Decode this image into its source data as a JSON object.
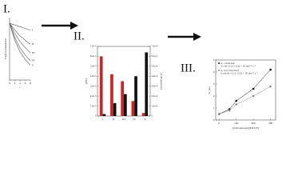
{
  "labels": [
    "I.",
    "II.",
    "III."
  ],
  "chart_data": [
    {
      "type": "line",
      "ylabel": "Light transmission",
      "xlabel": "t",
      "x": [
        0,
        2,
        4,
        6,
        8
      ],
      "xlim": [
        0,
        8
      ],
      "xticks": [
        0,
        2,
        4,
        6,
        8
      ],
      "ylim": [
        0,
        1.1
      ],
      "color": "#555555",
      "series": [
        {
          "name": "I",
          "values": [
            1,
            0.97,
            0.94,
            0.91,
            0.88
          ]
        },
        {
          "name": "II",
          "values": [
            1,
            0.88,
            0.78,
            0.7,
            0.63
          ]
        },
        {
          "name": "III",
          "values": [
            1,
            0.82,
            0.68,
            0.57,
            0.48
          ]
        },
        {
          "name": "IV",
          "values": [
            1,
            0.75,
            0.57,
            0.44,
            0.34
          ]
        },
        {
          "name": "V",
          "values": [
            1,
            0.7,
            0.5,
            0.36,
            0.26
          ]
        }
      ]
    },
    {
      "type": "bar",
      "ylabel": "[EE]",
      "y2label": "[2-Propanone]",
      "categories": [
        "I",
        "II",
        "III",
        "IV",
        "V"
      ],
      "ylim": [
        0,
        7e-05
      ],
      "yticks": [
        {
          "value": 0,
          "label": "0"
        },
        {
          "value": 1e-05,
          "label": "1.0e-5"
        },
        {
          "value": 2e-05,
          "label": "2.0e-5"
        },
        {
          "value": 3e-05,
          "label": "3.0e-5"
        },
        {
          "value": 4e-05,
          "label": "4.0e-5"
        },
        {
          "value": 5e-05,
          "label": "5.0e-5"
        },
        {
          "value": 6e-05,
          "label": "6.0e-5"
        },
        {
          "value": 7e-05,
          "label": "7.0e-5"
        }
      ],
      "y2lim": [
        0,
        0.0007
      ],
      "y2ticks": [
        {
          "value": 0,
          "label": "0"
        },
        {
          "value": 0.0001,
          "label": "1.0e-4"
        },
        {
          "value": 0.0002,
          "label": "2.0e-4"
        },
        {
          "value": 0.0003,
          "label": "3.0e-4"
        },
        {
          "value": 0.0004,
          "label": "4.0e-4"
        },
        {
          "value": 0.0005,
          "label": "5.0e-4"
        },
        {
          "value": 0.0006,
          "label": "6.0e-4"
        },
        {
          "value": 0.0007,
          "label": "7.0e-4"
        }
      ],
      "series": [
        {
          "name": "[EE]",
          "color": "#d42020",
          "values": [
            6e-05,
            4.2e-05,
            3.5e-05,
            1.5e-05,
            3e-06
          ]
        },
        {
          "name": "[2-Propanone]",
          "color": "#111111",
          "axis": "y2",
          "values": [
            2e-05,
            0.00013,
            0.00022,
            0.0004,
            0.00064
          ]
        }
      ]
    },
    {
      "type": "scatter",
      "xlabel": "[2-Propanone]/[DCCN]",
      "ylabel": "k_obs",
      "x": [
        0,
        60,
        100,
        200,
        300
      ],
      "xlim": [
        -20,
        330
      ],
      "xticks": [
        0,
        100,
        200,
        300
      ],
      "ylim": [
        0,
        5
      ],
      "yticks": [
        0,
        1,
        2,
        3,
        4,
        5
      ],
      "series": [
        {
          "name": "k₁ corrected",
          "color": "#111111",
          "note": "k_corr = (1.2 ± 0.2) × 10⁷ mol⁻¹ s⁻¹",
          "values": [
            0.5,
            0.9,
            1.6,
            2.6,
            4.2
          ]
        },
        {
          "name": "k₁ not corrected",
          "color": "#888888",
          "note": "k_uncorr = (1.2 ± 0.2) × 10⁷ mol⁻¹ s⁻¹",
          "values": [
            0.5,
            0.8,
            1.3,
            2.0,
            2.8
          ]
        }
      ]
    }
  ]
}
